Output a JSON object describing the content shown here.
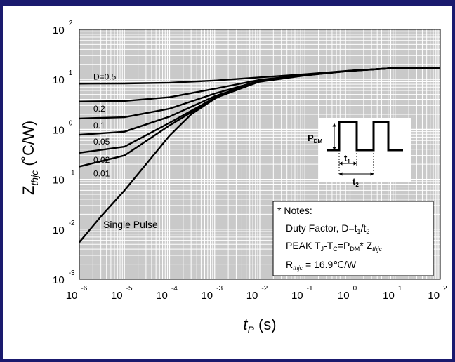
{
  "chart_data": {
    "type": "line",
    "x_scale": "log",
    "y_scale": "log",
    "xlim": [
      1e-06,
      100
    ],
    "ylim": [
      0.001,
      100
    ],
    "grid": true,
    "x_ticks": [
      {
        "base": "10",
        "exp": "-6",
        "value": 1e-06
      },
      {
        "base": "10",
        "exp": "-5",
        "value": 1e-05
      },
      {
        "base": "10",
        "exp": "-4",
        "value": 0.0001
      },
      {
        "base": "10",
        "exp": "-3",
        "value": 0.001
      },
      {
        "base": "10",
        "exp": "-2",
        "value": 0.01
      },
      {
        "base": "10",
        "exp": "-1",
        "value": 0.1
      },
      {
        "base": "10",
        "exp": "0",
        "value": 1
      },
      {
        "base": "10",
        "exp": "1",
        "value": 10
      },
      {
        "base": "10",
        "exp": "2",
        "value": 100
      }
    ],
    "y_ticks": [
      {
        "base": "10",
        "exp": "2",
        "value": 100
      },
      {
        "base": "10",
        "exp": "1",
        "value": 10
      },
      {
        "base": "10",
        "exp": "0",
        "value": 1
      },
      {
        "base": "10",
        "exp": "-1",
        "value": 0.1
      },
      {
        "base": "10",
        "exp": "-2",
        "value": 0.01
      },
      {
        "base": "10",
        "exp": "-3",
        "value": 0.001
      }
    ],
    "xlabel": {
      "main": "t",
      "sub": "P",
      "unit": " (s)"
    },
    "ylabel": {
      "main": "Z",
      "sub": "thjc",
      "unit": " (˚C/W)"
    },
    "series": [
      {
        "name": "D=0.5",
        "x": [
          1e-06,
          1e-05,
          0.0001,
          0.001,
          0.01,
          0.1,
          1,
          10,
          100
        ],
        "y": [
          8.2,
          8.3,
          8.6,
          9.5,
          11.0,
          12.7,
          15.0,
          16.9,
          16.9
        ]
      },
      {
        "name": "0.2",
        "x": [
          1e-06,
          1e-05,
          0.0001,
          0.001,
          0.01,
          0.1,
          1,
          10,
          100
        ],
        "y": [
          3.6,
          3.7,
          4.4,
          6.5,
          9.8,
          12.3,
          14.9,
          16.9,
          16.9
        ]
      },
      {
        "name": "0.1",
        "x": [
          1e-06,
          1e-05,
          0.0001,
          0.001,
          0.01,
          0.1,
          1,
          10,
          100
        ],
        "y": [
          1.65,
          1.75,
          2.6,
          5.2,
          9.4,
          12.2,
          14.9,
          16.9,
          16.9
        ]
      },
      {
        "name": "0.05",
        "x": [
          1e-06,
          1e-05,
          0.0001,
          0.001,
          0.01,
          0.1,
          1,
          10,
          100
        ],
        "y": [
          0.78,
          0.9,
          1.8,
          4.6,
          9.2,
          12.1,
          14.9,
          16.9,
          16.9
        ]
      },
      {
        "name": "0.02",
        "x": [
          1e-06,
          1e-05,
          0.0001,
          0.001,
          0.01,
          0.1,
          1,
          10,
          100
        ],
        "y": [
          0.34,
          0.45,
          1.35,
          4.3,
          9.1,
          12.1,
          14.9,
          16.9,
          16.9
        ]
      },
      {
        "name": "0.01",
        "x": [
          1e-06,
          1e-05,
          0.0001,
          0.001,
          0.01,
          0.1,
          1,
          10,
          100
        ],
        "y": [
          0.18,
          0.3,
          1.2,
          4.2,
          9.1,
          12.1,
          14.9,
          16.9,
          16.9
        ]
      },
      {
        "name": "Single Pulse",
        "x": [
          1e-06,
          3e-06,
          1e-05,
          3e-05,
          0.0001,
          0.0003,
          0.001,
          0.003,
          0.01,
          0.1,
          1,
          10,
          100
        ],
        "y": [
          0.0055,
          0.018,
          0.06,
          0.2,
          0.75,
          2.0,
          4.1,
          6.8,
          9.0,
          12.0,
          14.8,
          16.9,
          16.9
        ]
      }
    ],
    "annotations": {
      "pulse_labels": {
        "pdm_main": "P",
        "pdm_sub": "DM",
        "t1_main": "t",
        "t1_sub": "1",
        "t2_main": "t",
        "t2_sub": "2"
      },
      "notes": {
        "heading": "* Notes:",
        "line1_a": "Duty Factor, D=t",
        "line1_sub1": "1",
        "line1_b": "/t",
        "line1_sub2": "2",
        "line2_a": "PEAK T",
        "line2_sub1": "J",
        "line2_b": "-T",
        "line2_sub2": "C",
        "line2_c": "=P",
        "line2_sub3": "DM",
        "line2_d": "* Z",
        "line2_sub4": "thjc",
        "line3_a": "R",
        "line3_sub": "thjc",
        "line3_b": " = 16.9℃/W"
      }
    }
  },
  "colors": {
    "frame": "#1a1a6e",
    "grid_band": "#c9c9c9",
    "grid_line": "#ffffff",
    "curve": "#000000"
  }
}
